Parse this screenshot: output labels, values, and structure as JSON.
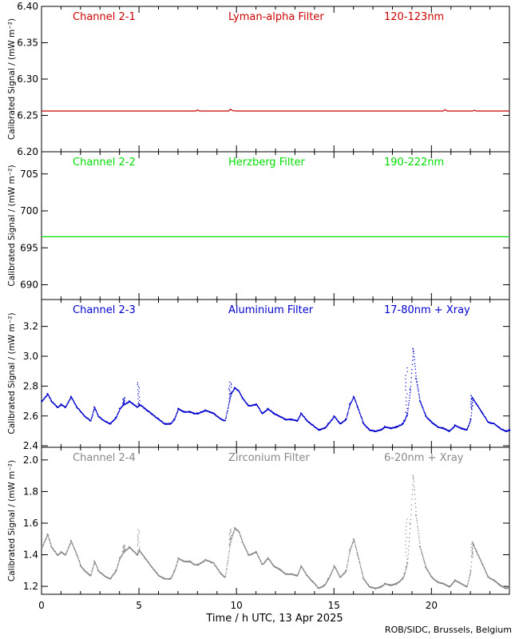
{
  "credit": "ROB/SIDC, Brussels, Belgium",
  "chart_data": [
    {
      "type": "line",
      "channel": "Channel 2-1",
      "filter": "Lyman-alpha Filter",
      "band": "120-123nm",
      "color": "#cc0000",
      "ylabel": "Calibrated Signal / (mW m⁻²)",
      "ylim": [
        6.2,
        6.4
      ],
      "yticks": [
        6.2,
        6.25,
        6.3,
        6.35,
        6.4
      ],
      "ytick_labels": [
        "6.20",
        "6.25",
        "6.30",
        "6.35",
        "6.40"
      ],
      "x": [
        0,
        2,
        4,
        6,
        7.9,
        8.0,
        8.1,
        9.0,
        9.6,
        9.7,
        9.8,
        10.0,
        12,
        14,
        16,
        18,
        20.6,
        20.7,
        20.8,
        22.1,
        22.2,
        22.3,
        24
      ],
      "y": [
        6.256,
        6.256,
        6.256,
        6.256,
        6.256,
        6.2575,
        6.256,
        6.256,
        6.256,
        6.2585,
        6.2565,
        6.256,
        6.256,
        6.256,
        6.256,
        6.256,
        6.256,
        6.258,
        6.256,
        6.256,
        6.257,
        6.256,
        6.256
      ]
    },
    {
      "type": "line",
      "channel": "Channel 2-2",
      "filter": "Herzberg Filter",
      "band": "190-222nm",
      "color": "#00dd00",
      "ylabel": "Calibrated Signal / (mW m⁻²)",
      "ylim": [
        688,
        708
      ],
      "yticks": [
        690,
        695,
        700,
        705
      ],
      "ytick_labels": [
        "690",
        "695",
        "700",
        "705"
      ],
      "x": [
        0,
        24
      ],
      "y": [
        696.5,
        696.5
      ]
    },
    {
      "type": "scatter",
      "channel": "Channel 2-3",
      "filter": "Aluminium Filter",
      "band": "17-80nm + Xray",
      "color": "#0000cc",
      "ylabel": "Calibrated Signal / (mW m⁻²)",
      "ylim": [
        2.39,
        3.38
      ],
      "yticks": [
        2.4,
        2.6,
        2.8,
        3.0,
        3.2
      ],
      "ytick_labels": [
        "2.4",
        "2.6",
        "2.8",
        "3.0",
        "3.2"
      ],
      "x": [
        0,
        0.3,
        0.5,
        0.8,
        1.0,
        1.2,
        1.5,
        1.8,
        2.0,
        2.2,
        2.5,
        2.7,
        2.9,
        3.2,
        3.5,
        3.8,
        4.0,
        4.2,
        4.5,
        4.9,
        5.0,
        5.3,
        5.6,
        5.8,
        6.0,
        6.3,
        6.6,
        6.8,
        7.0,
        7.3,
        7.6,
        7.8,
        8.0,
        8.4,
        8.8,
        9.2,
        9.4,
        9.7,
        9.9,
        10.1,
        10.3,
        10.6,
        11.0,
        11.3,
        11.6,
        11.9,
        12.2,
        12.5,
        12.8,
        13.1,
        13.3,
        13.6,
        13.9,
        14.2,
        14.5,
        14.7,
        15.0,
        15.3,
        15.6,
        15.8,
        16.0,
        16.2,
        16.5,
        16.8,
        17.1,
        17.4,
        17.6,
        17.9,
        18.2,
        18.5,
        18.6,
        18.75,
        18.9,
        19.05,
        19.2,
        19.4,
        19.7,
        20.0,
        20.3,
        20.6,
        20.9,
        21.2,
        21.5,
        21.8,
        22.0,
        22.1,
        22.3,
        22.6,
        22.9,
        23.2,
        23.5,
        23.8,
        24.0
      ],
      "y": [
        2.7,
        2.75,
        2.7,
        2.66,
        2.68,
        2.66,
        2.73,
        2.66,
        2.63,
        2.6,
        2.57,
        2.66,
        2.6,
        2.57,
        2.55,
        2.59,
        2.65,
        2.68,
        2.7,
        2.66,
        2.68,
        2.65,
        2.62,
        2.6,
        2.58,
        2.55,
        2.55,
        2.58,
        2.65,
        2.63,
        2.63,
        2.62,
        2.62,
        2.64,
        2.62,
        2.58,
        2.57,
        2.75,
        2.79,
        2.77,
        2.72,
        2.67,
        2.68,
        2.62,
        2.65,
        2.62,
        2.6,
        2.58,
        2.58,
        2.57,
        2.62,
        2.57,
        2.54,
        2.51,
        2.52,
        2.55,
        2.6,
        2.55,
        2.58,
        2.68,
        2.73,
        2.66,
        2.55,
        2.51,
        2.5,
        2.51,
        2.53,
        2.52,
        2.53,
        2.55,
        2.57,
        2.62,
        2.78,
        3.05,
        2.85,
        2.7,
        2.6,
        2.56,
        2.53,
        2.52,
        2.5,
        2.54,
        2.52,
        2.51,
        2.58,
        2.72,
        2.68,
        2.62,
        2.56,
        2.55,
        2.52,
        2.5,
        2.51
      ]
    },
    {
      "type": "scatter",
      "channel": "Channel 2-4",
      "filter": "Zirconium Filter",
      "band": "6-20nm + Xray",
      "color": "#888888",
      "ylabel": "Calibrated Signal / (mW m⁻²)",
      "ylim": [
        1.15,
        2.08
      ],
      "yticks": [
        1.2,
        1.4,
        1.6,
        1.8,
        2.0
      ],
      "ytick_labels": [
        "1.2",
        "1.4",
        "1.6",
        "1.8",
        "2.0"
      ],
      "x": [
        0,
        0.3,
        0.5,
        0.8,
        1.0,
        1.2,
        1.5,
        1.8,
        2.0,
        2.2,
        2.5,
        2.7,
        2.9,
        3.2,
        3.5,
        3.8,
        4.0,
        4.2,
        4.5,
        4.9,
        5.0,
        5.3,
        5.6,
        5.8,
        6.0,
        6.3,
        6.6,
        6.8,
        7.0,
        7.3,
        7.6,
        7.8,
        8.0,
        8.4,
        8.8,
        9.2,
        9.4,
        9.7,
        9.9,
        10.1,
        10.3,
        10.6,
        11.0,
        11.3,
        11.6,
        11.9,
        12.2,
        12.5,
        12.8,
        13.1,
        13.3,
        13.6,
        13.9,
        14.2,
        14.5,
        14.7,
        15.0,
        15.3,
        15.6,
        15.8,
        16.0,
        16.2,
        16.5,
        16.8,
        17.1,
        17.4,
        17.6,
        17.9,
        18.2,
        18.5,
        18.6,
        18.75,
        18.9,
        19.05,
        19.2,
        19.4,
        19.7,
        20.0,
        20.3,
        20.6,
        20.9,
        21.2,
        21.5,
        21.8,
        22.0,
        22.1,
        22.3,
        22.6,
        22.9,
        23.2,
        23.5,
        23.8,
        24.0
      ],
      "y": [
        1.45,
        1.53,
        1.45,
        1.4,
        1.42,
        1.4,
        1.49,
        1.4,
        1.33,
        1.3,
        1.27,
        1.36,
        1.3,
        1.27,
        1.25,
        1.3,
        1.38,
        1.42,
        1.45,
        1.4,
        1.43,
        1.38,
        1.33,
        1.3,
        1.27,
        1.25,
        1.25,
        1.3,
        1.38,
        1.36,
        1.36,
        1.34,
        1.34,
        1.37,
        1.35,
        1.28,
        1.26,
        1.5,
        1.57,
        1.55,
        1.48,
        1.4,
        1.42,
        1.34,
        1.38,
        1.33,
        1.31,
        1.28,
        1.28,
        1.27,
        1.33,
        1.27,
        1.23,
        1.19,
        1.21,
        1.25,
        1.33,
        1.26,
        1.3,
        1.43,
        1.5,
        1.4,
        1.25,
        1.2,
        1.19,
        1.2,
        1.22,
        1.21,
        1.22,
        1.25,
        1.28,
        1.35,
        1.6,
        1.9,
        1.65,
        1.45,
        1.32,
        1.26,
        1.23,
        1.22,
        1.2,
        1.24,
        1.22,
        1.2,
        1.3,
        1.48,
        1.42,
        1.34,
        1.26,
        1.24,
        1.21,
        1.19,
        1.2
      ]
    }
  ],
  "x_axis": {
    "label": "Time / h UTC, 13 Apr 2025",
    "xlim": [
      0,
      24
    ],
    "ticks": [
      0,
      5,
      10,
      15,
      20
    ],
    "tick_labels": [
      "0",
      "5",
      "10",
      "15",
      "20"
    ]
  }
}
